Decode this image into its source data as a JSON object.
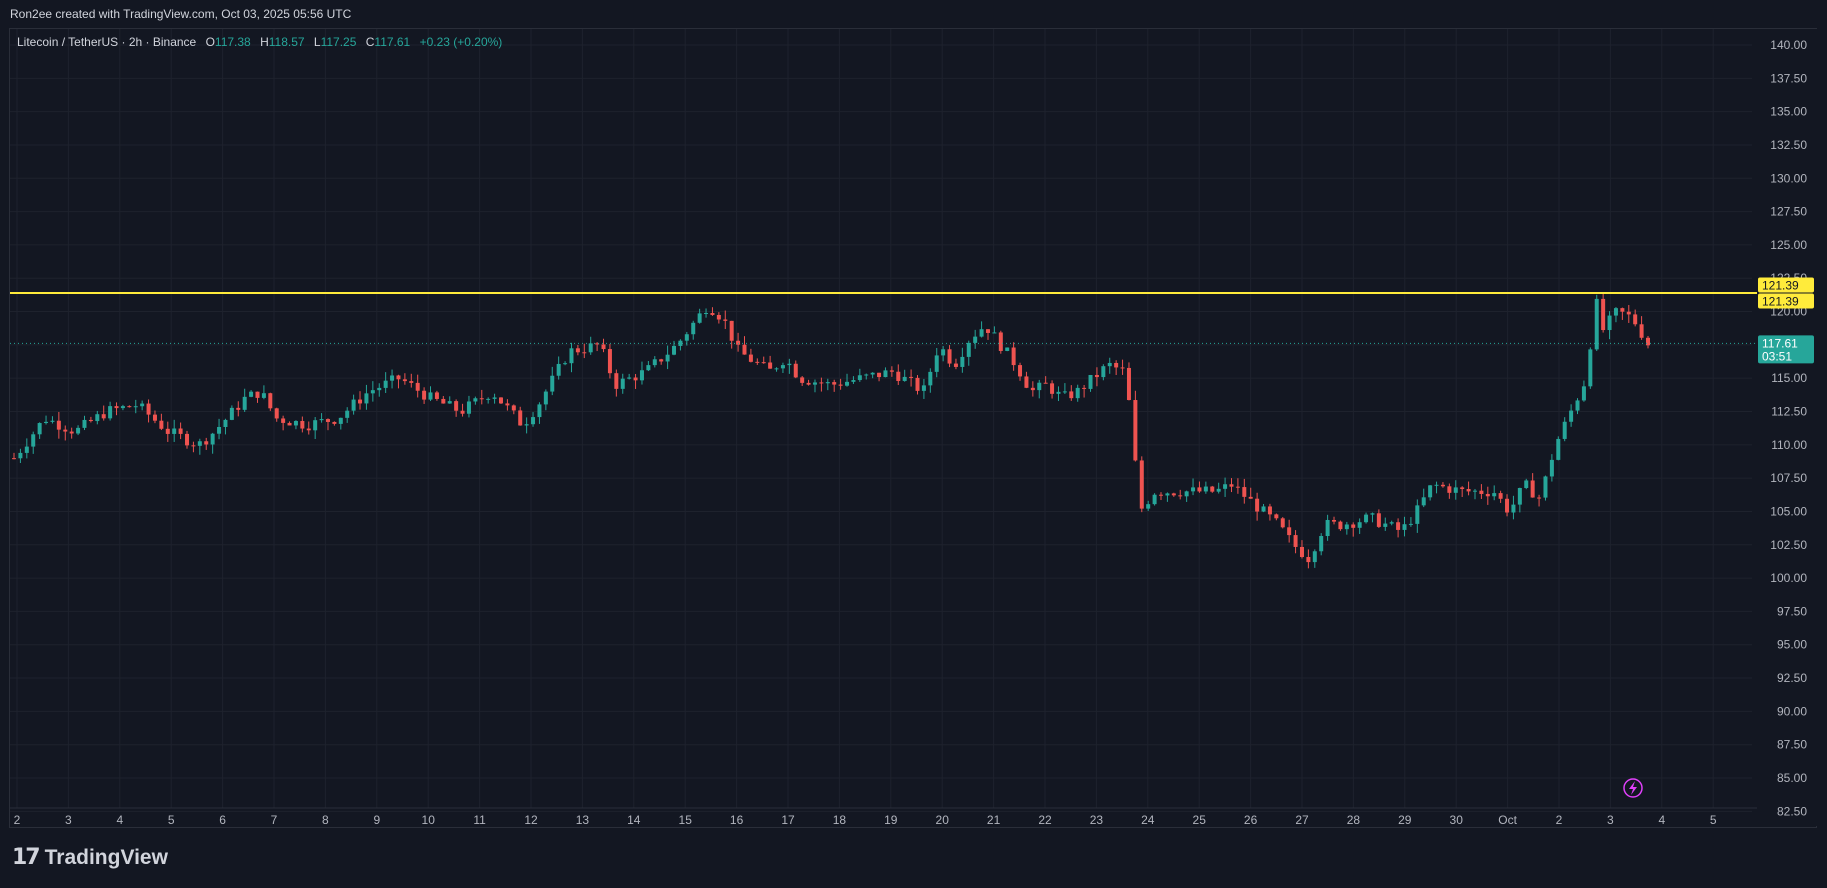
{
  "header": {
    "creator": "Ron2ee created with TradingView.com, Oct 03, 2025 05:56 UTC"
  },
  "legend": {
    "symbol": "Litecoin / TetherUS · 2h · Binance",
    "open_label": "O",
    "open": "117.38",
    "high_label": "H",
    "high": "118.57",
    "low_label": "L",
    "low": "117.25",
    "close_label": "C",
    "close": "117.61",
    "change": "+0.23 (+0.20%)"
  },
  "price_labels": {
    "level_1": "121.39",
    "level_2": "121.39",
    "last_price": "117.61",
    "countdown": "03:51"
  },
  "footer": {
    "brand": "TradingView",
    "logo_icon": "tradingview-logo-icon"
  },
  "colors": {
    "up": "#26a69a",
    "down": "#ef5350",
    "resistance_line": "#ffeb3b",
    "background": "#131722",
    "grid": "#1e222d",
    "flash_icon": "#e040fb"
  },
  "chart_data": {
    "type": "candlestick",
    "title": "Litecoin / TetherUS · 2h · Binance",
    "y_ticks": [
      "140.00",
      "137.50",
      "135.00",
      "132.50",
      "130.00",
      "127.50",
      "125.00",
      "122.50",
      "120.00",
      "117.50",
      "115.00",
      "112.50",
      "110.00",
      "107.50",
      "105.00",
      "102.50",
      "100.00",
      "97.50",
      "95.00",
      "92.50",
      "90.00",
      "87.50",
      "85.00",
      "82.50"
    ],
    "x_ticks": [
      "2",
      "3",
      "4",
      "5",
      "6",
      "7",
      "8",
      "9",
      "10",
      "11",
      "12",
      "13",
      "14",
      "15",
      "16",
      "17",
      "18",
      "19",
      "20",
      "21",
      "22",
      "23",
      "24",
      "25",
      "26",
      "27",
      "28",
      "29",
      "30",
      "Oct",
      "2",
      "3",
      "4",
      "5"
    ],
    "ylim": [
      81.4,
      141.2
    ],
    "resistance_level": 121.39,
    "last_close": 117.61,
    "close_path": [
      [
        0,
        109.0
      ],
      [
        2,
        112.0
      ],
      [
        4,
        111.0
      ],
      [
        6,
        112.5
      ],
      [
        8,
        113.0
      ],
      [
        10,
        111.0
      ],
      [
        12,
        110.0
      ],
      [
        13,
        111.0
      ],
      [
        15,
        113.5
      ],
      [
        16,
        114.0
      ],
      [
        17,
        112.0
      ],
      [
        19,
        111.5
      ],
      [
        21,
        112.0
      ],
      [
        23,
        114.0
      ],
      [
        25,
        115.0
      ],
      [
        27,
        113.5
      ],
      [
        29,
        112.5
      ],
      [
        31,
        114.0
      ],
      [
        33,
        111.5
      ],
      [
        34,
        113.0
      ],
      [
        36,
        117.0
      ],
      [
        38,
        117.5
      ],
      [
        39,
        114.5
      ],
      [
        41,
        115.5
      ],
      [
        43,
        117.5
      ],
      [
        44,
        119.0
      ],
      [
        45,
        120.5
      ],
      [
        46,
        119.5
      ],
      [
        47,
        117.0
      ],
      [
        49,
        115.5
      ],
      [
        50,
        116.5
      ],
      [
        51,
        115.0
      ],
      [
        53,
        114.5
      ],
      [
        55,
        115.0
      ],
      [
        57,
        115.5
      ],
      [
        59,
        114.0
      ],
      [
        60,
        117.5
      ],
      [
        61,
        116.0
      ],
      [
        62,
        118.0
      ],
      [
        63,
        119.0
      ],
      [
        64,
        117.5
      ],
      [
        65,
        116.0
      ],
      [
        66,
        114.0
      ],
      [
        67,
        114.5
      ],
      [
        68,
        113.5
      ],
      [
        69,
        114.0
      ],
      [
        70,
        115.0
      ],
      [
        71,
        116.0
      ],
      [
        72,
        115.5
      ],
      [
        72.5,
        112.0
      ],
      [
        73,
        105.0
      ],
      [
        74,
        106.5
      ],
      [
        76,
        106.5
      ],
      [
        78,
        106.5
      ],
      [
        79,
        107.0
      ],
      [
        80,
        106.0
      ],
      [
        82,
        104.0
      ],
      [
        83,
        102.5
      ],
      [
        84,
        101.5
      ],
      [
        85,
        104.0
      ],
      [
        86,
        104.0
      ],
      [
        88,
        104.5
      ],
      [
        90,
        103.5
      ],
      [
        91,
        105.0
      ],
      [
        92,
        107.0
      ],
      [
        94,
        106.5
      ],
      [
        96,
        106.5
      ],
      [
        97,
        105.0
      ],
      [
        98,
        107.0
      ],
      [
        99,
        106.0
      ],
      [
        100,
        110.0
      ],
      [
        101,
        112.5
      ],
      [
        102,
        115.0
      ],
      [
        102.6,
        121.0
      ],
      [
        103,
        118.5
      ],
      [
        104,
        120.0
      ],
      [
        105,
        119.5
      ],
      [
        106,
        117.6
      ]
    ]
  }
}
